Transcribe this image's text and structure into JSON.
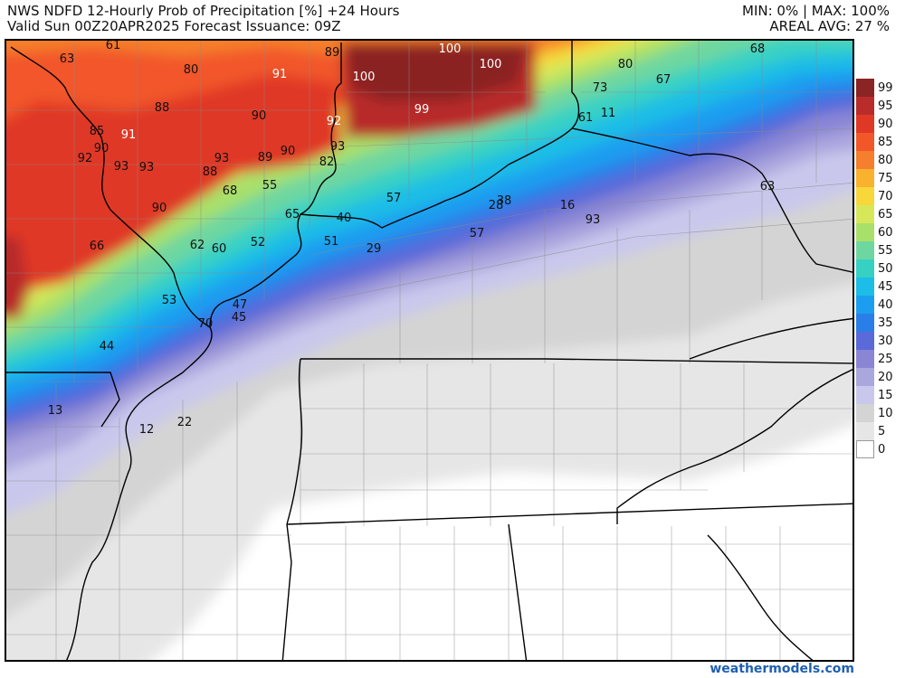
{
  "header": {
    "title_line1": "NWS NDFD 12-Hourly Prob of Precipitation [%] +24 Hours",
    "title_line2": "Valid Sun 00Z20APR2025   Forecast Issuance: 09Z",
    "stats_line1": "MIN: 0% | MAX: 100%",
    "stats_line2": "AREAL AVG: 27 %"
  },
  "legend": {
    "entries": [
      {
        "label": "99",
        "color": "#8b2424"
      },
      {
        "label": "95",
        "color": "#b82c2c"
      },
      {
        "label": "90",
        "color": "#e03826"
      },
      {
        "label": "85",
        "color": "#f2572a"
      },
      {
        "label": "80",
        "color": "#f57f2c"
      },
      {
        "label": "75",
        "color": "#f8b22e"
      },
      {
        "label": "70",
        "color": "#f7d73a"
      },
      {
        "label": "65",
        "color": "#d6e85a"
      },
      {
        "label": "60",
        "color": "#a9e06a"
      },
      {
        "label": "55",
        "color": "#6ed7a0"
      },
      {
        "label": "50",
        "color": "#37d1c4"
      },
      {
        "label": "45",
        "color": "#1cbde6"
      },
      {
        "label": "40",
        "color": "#1c9ef0"
      },
      {
        "label": "35",
        "color": "#2a7ee8"
      },
      {
        "label": "30",
        "color": "#5a6ad9"
      },
      {
        "label": "25",
        "color": "#8a86d4"
      },
      {
        "label": "20",
        "color": "#aaa6de"
      },
      {
        "label": "15",
        "color": "#c9c8ec"
      },
      {
        "label": "10",
        "color": "#d4d4d4"
      },
      {
        "label": "5",
        "color": "#e6e6e6"
      },
      {
        "label": "0",
        "color": "#ffffff"
      }
    ]
  },
  "map_labels": [
    {
      "text": "61"
    },
    {
      "text": "63"
    },
    {
      "text": "80"
    },
    {
      "text": "91"
    },
    {
      "text": "89"
    },
    {
      "text": "100"
    },
    {
      "text": "100"
    },
    {
      "text": "100"
    },
    {
      "text": "99"
    },
    {
      "text": "80"
    },
    {
      "text": "73"
    },
    {
      "text": "67"
    },
    {
      "text": "68"
    },
    {
      "text": "88"
    },
    {
      "text": "85"
    },
    {
      "text": "91"
    },
    {
      "text": "90"
    },
    {
      "text": "92"
    },
    {
      "text": "90"
    },
    {
      "text": "92"
    },
    {
      "text": "90"
    },
    {
      "text": "93"
    },
    {
      "text": "93"
    },
    {
      "text": "93"
    },
    {
      "text": "93"
    },
    {
      "text": "88"
    },
    {
      "text": "89"
    },
    {
      "text": "82"
    },
    {
      "text": "68"
    },
    {
      "text": "55"
    },
    {
      "text": "57"
    },
    {
      "text": "61"
    },
    {
      "text": "11"
    },
    {
      "text": "63"
    },
    {
      "text": "65"
    },
    {
      "text": "40"
    },
    {
      "text": "38"
    },
    {
      "text": "28"
    },
    {
      "text": "16"
    },
    {
      "text": "93"
    },
    {
      "text": "90"
    },
    {
      "text": "66"
    },
    {
      "text": "62"
    },
    {
      "text": "60"
    },
    {
      "text": "52"
    },
    {
      "text": "51"
    },
    {
      "text": "29"
    },
    {
      "text": "57"
    },
    {
      "text": "53"
    },
    {
      "text": "47"
    },
    {
      "text": "45"
    },
    {
      "text": "70"
    },
    {
      "text": "44"
    },
    {
      "text": "13"
    },
    {
      "text": "12"
    },
    {
      "text": "22"
    }
  ],
  "credit": "weathermodels.com"
}
